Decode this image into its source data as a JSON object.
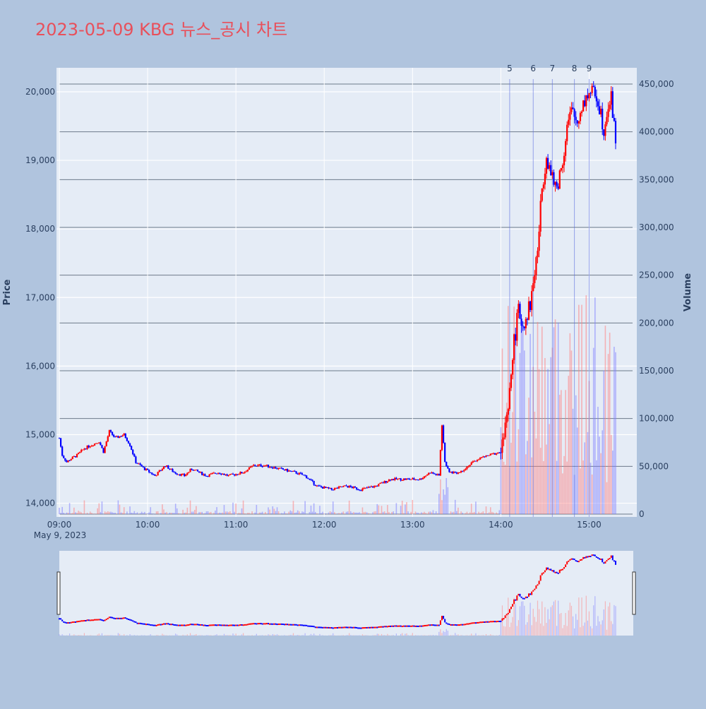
{
  "chart_data": {
    "type": "candlestick",
    "title": "2023-05-09 KBG 뉴스_공시 차트",
    "date_label": "May 9, 2023",
    "ylabel": "Price",
    "y2label": "Volume",
    "ylim": [
      13800,
      20350
    ],
    "y2lim": [
      0,
      467000
    ],
    "x_range": [
      "09:00",
      "15:30"
    ],
    "price_ticks": [
      "14,000",
      "15,000",
      "16,000",
      "17,000",
      "18,000",
      "19,000",
      "20,000"
    ],
    "volume_ticks": [
      "0",
      "50,000",
      "100,000",
      "150,000",
      "200,000",
      "250,000",
      "300,000",
      "350,000",
      "400,000",
      "450,000"
    ],
    "time_ticks": [
      "09:00",
      "10:00",
      "11:00",
      "12:00",
      "13:00",
      "14:00",
      "15:00"
    ],
    "colors": {
      "up": "#ff0000",
      "down": "#0000ff",
      "title": "#e8505b",
      "plot_bg": "#e5ecf6",
      "page_bg": "#b0c4de"
    },
    "news_markers": [
      {
        "label": "5",
        "time": "14:06"
      },
      {
        "label": "6",
        "time": "14:22"
      },
      {
        "label": "7",
        "time": "14:35"
      },
      {
        "label": "8",
        "time": "14:50"
      },
      {
        "label": "9",
        "time": "15:00"
      }
    ],
    "price_path": [
      [
        "09:00",
        14950
      ],
      [
        "09:02",
        14700
      ],
      [
        "09:05",
        14600
      ],
      [
        "09:08",
        14650
      ],
      [
        "09:12",
        14700
      ],
      [
        "09:17",
        14800
      ],
      [
        "09:22",
        14850
      ],
      [
        "09:27",
        14900
      ],
      [
        "09:30",
        14750
      ],
      [
        "09:34",
        15050
      ],
      [
        "09:38",
        14950
      ],
      [
        "09:44",
        15000
      ],
      [
        "09:48",
        14850
      ],
      [
        "09:52",
        14600
      ],
      [
        "09:58",
        14500
      ],
      [
        "10:05",
        14400
      ],
      [
        "10:12",
        14550
      ],
      [
        "10:18",
        14450
      ],
      [
        "10:25",
        14400
      ],
      [
        "10:30",
        14500
      ],
      [
        "10:40",
        14400
      ],
      [
        "10:48",
        14450
      ],
      [
        "10:55",
        14400
      ],
      [
        "11:05",
        14450
      ],
      [
        "11:12",
        14550
      ],
      [
        "11:20",
        14550
      ],
      [
        "11:30",
        14500
      ],
      [
        "11:40",
        14450
      ],
      [
        "11:47",
        14400
      ],
      [
        "11:55",
        14250
      ],
      [
        "12:05",
        14200
      ],
      [
        "12:15",
        14250
      ],
      [
        "12:25",
        14200
      ],
      [
        "12:35",
        14250
      ],
      [
        "12:45",
        14350
      ],
      [
        "12:55",
        14350
      ],
      [
        "13:05",
        14350
      ],
      [
        "13:12",
        14450
      ],
      [
        "13:18",
        14400
      ],
      [
        "13:20",
        15150
      ],
      [
        "13:22",
        14600
      ],
      [
        "13:25",
        14450
      ],
      [
        "13:32",
        14450
      ],
      [
        "13:38",
        14550
      ],
      [
        "13:45",
        14650
      ],
      [
        "13:52",
        14700
      ],
      [
        "14:00",
        14750
      ],
      [
        "14:05",
        15300
      ],
      [
        "14:08",
        16200
      ],
      [
        "14:12",
        16800
      ],
      [
        "14:15",
        16600
      ],
      [
        "14:20",
        16900
      ],
      [
        "14:25",
        17700
      ],
      [
        "14:28",
        18600
      ],
      [
        "14:31",
        19100
      ],
      [
        "14:35",
        18700
      ],
      [
        "14:38",
        18600
      ],
      [
        "14:42",
        19000
      ],
      [
        "14:45",
        19500
      ],
      [
        "14:48",
        19700
      ],
      [
        "14:52",
        19550
      ],
      [
        "14:55",
        19800
      ],
      [
        "15:00",
        20000
      ],
      [
        "15:05",
        19950
      ],
      [
        "15:08",
        19700
      ],
      [
        "15:10",
        19450
      ],
      [
        "15:12",
        19750
      ],
      [
        "15:15",
        19900
      ],
      [
        "15:18",
        19300
      ]
    ]
  }
}
